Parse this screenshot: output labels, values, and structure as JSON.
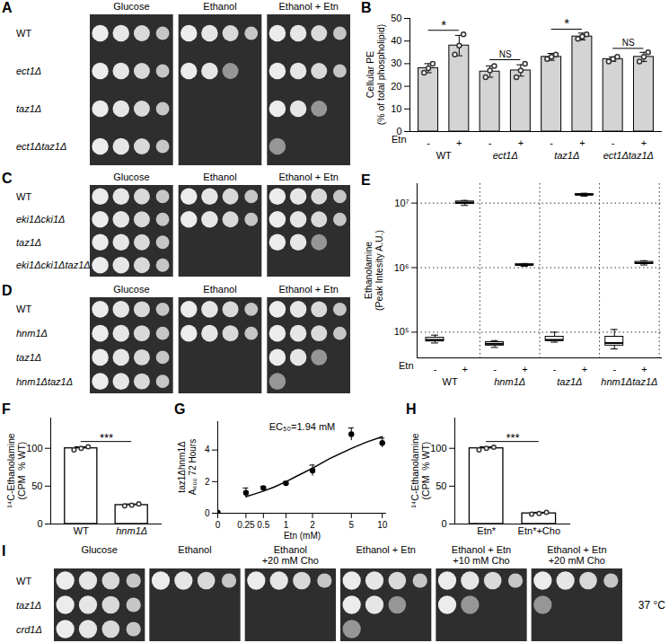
{
  "chart_data": [
    {
      "panel": "B",
      "type": "bar",
      "y_label": "Cellular PE\n(% of total phospholipid)",
      "categories": [
        "-",
        "+",
        "-",
        "+",
        "-",
        "+",
        "-",
        "+"
      ],
      "groups": [
        "WT",
        "ect1Δ",
        "taz1Δ",
        "ect1Δtaz1Δ"
      ],
      "x_label": "Etn",
      "values": [
        28,
        38,
        26.5,
        27,
        33,
        42,
        32,
        33
      ],
      "errors": [
        2,
        4.5,
        2.5,
        2.5,
        1.5,
        1.5,
        1,
        2
      ],
      "points": [
        [
          26,
          28,
          30
        ],
        [
          34,
          38,
          43
        ],
        [
          24,
          27,
          29
        ],
        [
          24,
          27,
          30
        ],
        [
          32,
          33,
          34
        ],
        [
          41,
          42,
          43
        ],
        [
          31,
          32,
          33
        ],
        [
          31,
          33,
          35
        ]
      ],
      "annotations": [
        "*",
        "NS",
        "*",
        "NS"
      ],
      "color": "#d4d4d4",
      "ylim": [
        0,
        50
      ],
      "yticks": [
        0,
        10,
        20,
        30,
        40,
        50
      ]
    },
    {
      "panel": "E",
      "type": "box",
      "y_label": "Ethanolamine\n(Peak Intesity A.U.)",
      "categories": [
        "-",
        "+",
        "-",
        "+",
        "-",
        "+",
        "-",
        "+"
      ],
      "groups": [
        "WT",
        "hnm1Δ",
        "taz1Δ",
        "hnm1Δtaz1Δ"
      ],
      "x_label": "Etn",
      "boxes": [
        {
          "min": 68000,
          "q1": 72000,
          "median": 76000,
          "q3": 82000,
          "max": 90000
        },
        {
          "min": 9200000,
          "q1": 9700000,
          "median": 10200000,
          "q3": 10600000,
          "max": 11000000
        },
        {
          "min": 58000,
          "q1": 62000,
          "median": 66000,
          "q3": 70000,
          "max": 74000
        },
        {
          "min": 1050000,
          "q1": 1080000,
          "median": 1100000,
          "q3": 1130000,
          "max": 1160000
        },
        {
          "min": 70000,
          "q1": 73000,
          "median": 76000,
          "q3": 85000,
          "max": 100000
        },
        {
          "min": 12800000,
          "q1": 13200000,
          "median": 13500000,
          "q3": 13800000,
          "max": 14200000
        },
        {
          "min": 55000,
          "q1": 62000,
          "median": 68000,
          "q3": 85000,
          "max": 110000
        },
        {
          "min": 1100000,
          "q1": 1140000,
          "median": 1180000,
          "q3": 1230000,
          "max": 1280000
        }
      ],
      "color": "#ffffff",
      "log": "y",
      "grid": true,
      "ylim": [
        40000,
        20000000
      ],
      "yticks": [
        {
          "value": 100000,
          "label": "10⁵"
        },
        {
          "value": 1000000,
          "label": "10⁶"
        },
        {
          "value": 10000000,
          "label": "10⁷"
        }
      ]
    },
    {
      "panel": "F",
      "type": "bar",
      "y_label": "¹⁴C-Ethanolamine\n(CPM  % WT)",
      "categories": [
        "WT",
        "hnm1Δ"
      ],
      "values": [
        100,
        25
      ],
      "errors": [
        2,
        1.5
      ],
      "points": [
        [
          98,
          100,
          102
        ],
        [
          24,
          25,
          26.5
        ]
      ],
      "annotation": "***",
      "color": "#ffffff",
      "ylim": [
        0,
        140
      ],
      "yticks": [
        0,
        50,
        100
      ]
    },
    {
      "panel": "G",
      "type": "scatter",
      "y_label": "taz1Δhnm1Δ\nA₆₀₀ 72 Hours",
      "x_label": "Etn (mM)",
      "annotation": "EC₅₀=1.94 mM",
      "x": [
        0,
        0.25,
        0.5,
        1,
        2,
        5,
        10
      ],
      "values": [
        0.05,
        1.3,
        1.6,
        1.9,
        2.7,
        5.0,
        4.45
      ],
      "errors": [
        0.05,
        0.3,
        0.1,
        0.1,
        0.35,
        0.4,
        0.3
      ],
      "fit": {
        "x": [
          0.25,
          0.35,
          0.5,
          0.7,
          1,
          1.4,
          2,
          3,
          5,
          7,
          10
        ],
        "values": [
          1.05,
          1.2,
          1.4,
          1.65,
          2.0,
          2.4,
          2.85,
          3.45,
          4.1,
          4.5,
          4.85
        ],
        "line_style": "solid"
      },
      "marker": "circle",
      "color": "#000000",
      "log": "x",
      "xlim": [
        0,
        11
      ],
      "xticks": [
        0,
        0.25,
        0.5,
        1,
        2,
        5,
        10
      ],
      "ylim": [
        0,
        5.8
      ],
      "yticks": [
        0,
        2,
        4
      ]
    },
    {
      "panel": "H",
      "type": "bar",
      "y_label": "¹⁴C-Ethanolamine\n(CPM  % WT)",
      "categories": [
        "Etn*",
        "Etn*+Cho"
      ],
      "values": [
        100,
        14
      ],
      "errors": [
        2,
        1.5
      ],
      "points": [
        [
          98,
          100,
          101.5
        ],
        [
          13,
          14,
          15.5
        ]
      ],
      "annotation": "***",
      "color": "#ffffff",
      "ylim": [
        0,
        140
      ],
      "yticks": [
        0,
        50,
        100
      ]
    }
  ],
  "spot_assays": [
    {
      "panel": "A",
      "conditions": [
        "Glucose",
        "Ethanol",
        "Ethanol + Etn"
      ],
      "strains": [
        "WT",
        "ect1Δ",
        "taz1Δ",
        "ect1Δtaz1Δ"
      ],
      "growth": [
        [
          4,
          4,
          4
        ],
        [
          4,
          3,
          4
        ],
        [
          4,
          0,
          3
        ],
        [
          4,
          0,
          1
        ]
      ]
    },
    {
      "panel": "C",
      "conditions": [
        "Glucose",
        "Ethanol",
        "Ethanol + Etn"
      ],
      "strains": [
        "WT",
        "eki1Δcki1Δ",
        "taz1Δ",
        "eki1Δcki1Δtaz1Δ"
      ],
      "growth": [
        [
          4,
          4,
          4
        ],
        [
          4,
          4,
          4
        ],
        [
          4,
          0,
          3
        ],
        [
          4,
          0,
          0
        ]
      ]
    },
    {
      "panel": "D",
      "conditions": [
        "Glucose",
        "Ethanol",
        "Ethanol + Etn"
      ],
      "strains": [
        "WT",
        "hnm1Δ",
        "taz1Δ",
        "hnm1Δtaz1Δ"
      ],
      "growth": [
        [
          4,
          4,
          4
        ],
        [
          4,
          4,
          4
        ],
        [
          4,
          0,
          3
        ],
        [
          4,
          0,
          1
        ]
      ]
    },
    {
      "panel": "I",
      "conditions": [
        "Glucose",
        "Ethanol",
        "Ethanol\n+20 mM Cho",
        "Ethanol + Etn",
        "Ethanol + Etn\n+10 mM Cho",
        "Ethanol + Etn\n+20 mM Cho"
      ],
      "strains": [
        "WT",
        "taz1Δ",
        "crd1Δ"
      ],
      "growth": [
        [
          4,
          4,
          4,
          4,
          4,
          4
        ],
        [
          4,
          0,
          0,
          3,
          2,
          1
        ],
        [
          4,
          0,
          0,
          1,
          0,
          0
        ]
      ],
      "temperature": "37 °C"
    }
  ]
}
